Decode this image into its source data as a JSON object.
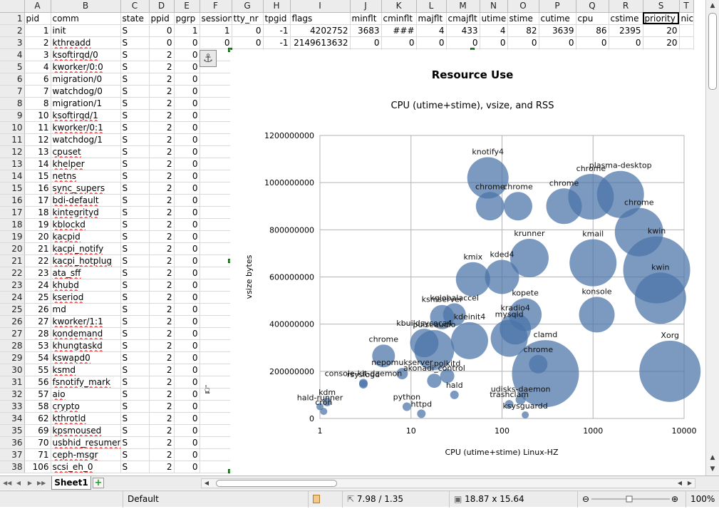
{
  "spreadsheet": {
    "columns": [
      {
        "letter": "A",
        "header": "pid"
      },
      {
        "letter": "B",
        "header": "comm"
      },
      {
        "letter": "C",
        "header": "state"
      },
      {
        "letter": "D",
        "header": "ppid"
      },
      {
        "letter": "E",
        "header": "pgrp"
      },
      {
        "letter": "F",
        "header": "session"
      },
      {
        "letter": "G",
        "header": "tty_nr"
      },
      {
        "letter": "H",
        "header": "tpgid"
      },
      {
        "letter": "I",
        "header": "flags"
      },
      {
        "letter": "J",
        "header": "minflt"
      },
      {
        "letter": "K",
        "header": "cminflt"
      },
      {
        "letter": "L",
        "header": "majflt"
      },
      {
        "letter": "M",
        "header": "cmajflt"
      },
      {
        "letter": "N",
        "header": "utime"
      },
      {
        "letter": "O",
        "header": "stime"
      },
      {
        "letter": "P",
        "header": "cutime"
      },
      {
        "letter": "Q",
        "header": "cpu"
      },
      {
        "letter": "R",
        "header": "cstime"
      },
      {
        "letter": "S",
        "header": "priority"
      },
      {
        "letter": "T",
        "header": "nice"
      }
    ],
    "selected_column": "S",
    "current_cell": "S1",
    "rows": [
      {
        "n": "2",
        "cells": [
          "1",
          "init",
          "S",
          "0",
          "1",
          "1",
          "0",
          "-1",
          "4202752",
          "3683",
          "###",
          "4",
          "433",
          "4",
          "82",
          "3639",
          "86",
          "2395",
          "20",
          ""
        ]
      },
      {
        "n": "3",
        "cells": [
          "2",
          "kthreadd",
          "S",
          "0",
          "0",
          "0",
          "0",
          "-1",
          "2149613632",
          "0",
          "0",
          "0",
          "0",
          "0",
          "0",
          "0",
          "0",
          "0",
          "20",
          ""
        ]
      },
      {
        "n": "4",
        "cells": [
          "3",
          "ksoftirqd/0",
          "S",
          "2",
          "0"
        ]
      },
      {
        "n": "5",
        "cells": [
          "4",
          "kworker/0:0",
          "S",
          "2",
          "0"
        ]
      },
      {
        "n": "6",
        "cells": [
          "6",
          "migration/0",
          "S",
          "2",
          "0"
        ]
      },
      {
        "n": "7",
        "cells": [
          "7",
          "watchdog/0",
          "S",
          "2",
          "0"
        ]
      },
      {
        "n": "8",
        "cells": [
          "8",
          "migration/1",
          "S",
          "2",
          "0"
        ]
      },
      {
        "n": "9",
        "cells": [
          "10",
          "ksoftirqd/1",
          "S",
          "2",
          "0"
        ]
      },
      {
        "n": "10",
        "cells": [
          "11",
          "kworker/0:1",
          "S",
          "2",
          "0"
        ]
      },
      {
        "n": "11",
        "cells": [
          "12",
          "watchdog/1",
          "S",
          "2",
          "0"
        ]
      },
      {
        "n": "12",
        "cells": [
          "13",
          "cpuset",
          "S",
          "2",
          "0"
        ]
      },
      {
        "n": "13",
        "cells": [
          "14",
          "khelper",
          "S",
          "2",
          "0"
        ]
      },
      {
        "n": "14",
        "cells": [
          "15",
          "netns",
          "S",
          "2",
          "0"
        ]
      },
      {
        "n": "15",
        "cells": [
          "16",
          "sync_supers",
          "S",
          "2",
          "0"
        ]
      },
      {
        "n": "16",
        "cells": [
          "17",
          "bdi-default",
          "S",
          "2",
          "0"
        ]
      },
      {
        "n": "17",
        "cells": [
          "18",
          "kintegrityd",
          "S",
          "2",
          "0"
        ]
      },
      {
        "n": "18",
        "cells": [
          "19",
          "kblockd",
          "S",
          "2",
          "0"
        ]
      },
      {
        "n": "19",
        "cells": [
          "20",
          "kacpid",
          "S",
          "2",
          "0"
        ]
      },
      {
        "n": "20",
        "cells": [
          "21",
          "kacpi_notify",
          "S",
          "2",
          "0"
        ]
      },
      {
        "n": "21",
        "cells": [
          "22",
          "kacpi_hotplug",
          "S",
          "2",
          "0"
        ]
      },
      {
        "n": "22",
        "cells": [
          "23",
          "ata_sff",
          "S",
          "2",
          "0"
        ]
      },
      {
        "n": "23",
        "cells": [
          "24",
          "khubd",
          "S",
          "2",
          "0"
        ]
      },
      {
        "n": "24",
        "cells": [
          "25",
          "kseriod",
          "S",
          "2",
          "0"
        ]
      },
      {
        "n": "25",
        "cells": [
          "26",
          "md",
          "S",
          "2",
          "0"
        ]
      },
      {
        "n": "26",
        "cells": [
          "27",
          "kworker/1:1",
          "S",
          "2",
          "0"
        ]
      },
      {
        "n": "27",
        "cells": [
          "28",
          "kondemand",
          "S",
          "2",
          "0"
        ]
      },
      {
        "n": "28",
        "cells": [
          "53",
          "khungtaskd",
          "S",
          "2",
          "0"
        ]
      },
      {
        "n": "29",
        "cells": [
          "54",
          "kswapd0",
          "S",
          "2",
          "0"
        ]
      },
      {
        "n": "30",
        "cells": [
          "55",
          "ksmd",
          "S",
          "2",
          "0"
        ]
      },
      {
        "n": "31",
        "cells": [
          "56",
          "fsnotify_mark",
          "S",
          "2",
          "0"
        ]
      },
      {
        "n": "32",
        "cells": [
          "57",
          "aio",
          "S",
          "2",
          "0"
        ]
      },
      {
        "n": "33",
        "cells": [
          "58",
          "crypto",
          "S",
          "2",
          "0"
        ]
      },
      {
        "n": "34",
        "cells": [
          "62",
          "kthrotld",
          "S",
          "2",
          "0"
        ]
      },
      {
        "n": "35",
        "cells": [
          "69",
          "kpsmoused",
          "S",
          "2",
          "0"
        ]
      },
      {
        "n": "36",
        "cells": [
          "70",
          "usbhid_resumer",
          "S",
          "2",
          "0"
        ]
      },
      {
        "n": "37",
        "cells": [
          "71",
          "ceph-msgr",
          "S",
          "2",
          "0"
        ]
      },
      {
        "n": "38",
        "cells": [
          "106",
          "scsi_eh_0",
          "S",
          "2",
          "0"
        ]
      }
    ]
  },
  "chart_data": {
    "type": "scatter",
    "title": "Resource Use",
    "subtitle": "CPU (utime+stime), vsize, and RSS",
    "xlabel": "CPU (utime+stime) Linux-HZ",
    "ylabel": "vsize bytes",
    "xscale": "log",
    "xlim": [
      1,
      10000
    ],
    "ylim": [
      0,
      1200000000
    ],
    "xticks": [
      "1",
      "10",
      "100",
      "1000",
      "10000"
    ],
    "yticks": [
      "0",
      "200000000",
      "400000000",
      "600000000",
      "800000000",
      "1000000000",
      "1200000000"
    ],
    "grid": true,
    "color": "#4a73a8",
    "points": [
      {
        "label": "knotify4",
        "x": 70,
        "y": 1020000000,
        "size": 29
      },
      {
        "label": "chrome",
        "x": 74,
        "y": 900000000,
        "size": 20
      },
      {
        "label": "chrome",
        "x": 150,
        "y": 900000000,
        "size": 20
      },
      {
        "label": "chrome",
        "x": 480,
        "y": 900000000,
        "size": 25
      },
      {
        "label": "chrome",
        "x": 950,
        "y": 940000000,
        "size": 32
      },
      {
        "label": "plasma-desktop",
        "x": 2000,
        "y": 950000000,
        "size": 33
      },
      {
        "label": "chrome",
        "x": 3200,
        "y": 790000000,
        "size": 34
      },
      {
        "label": "kmail",
        "x": 1000,
        "y": 660000000,
        "size": 33
      },
      {
        "label": "kwin",
        "x": 5000,
        "y": 630000000,
        "size": 47
      },
      {
        "label": "kwin",
        "x": 5500,
        "y": 510000000,
        "size": 36
      },
      {
        "label": "krunner",
        "x": 200,
        "y": 680000000,
        "size": 27
      },
      {
        "label": "kded4",
        "x": 100,
        "y": 600000000,
        "size": 24
      },
      {
        "label": "kmix",
        "x": 48,
        "y": 590000000,
        "size": 24
      },
      {
        "label": "kopete",
        "x": 180,
        "y": 440000000,
        "size": 23
      },
      {
        "label": "konsole",
        "x": 1100,
        "y": 440000000,
        "size": 25
      },
      {
        "label": "mysqld",
        "x": 120,
        "y": 340000000,
        "size": 26
      },
      {
        "label": "kradio4",
        "x": 140,
        "y": 380000000,
        "size": 22
      },
      {
        "label": "clamd",
        "x": 300,
        "y": 190000000,
        "size": 47
      },
      {
        "label": "chrome",
        "x": 250,
        "y": 230000000,
        "size": 13
      },
      {
        "label": "Xorg",
        "x": 7000,
        "y": 200000000,
        "size": 43
      },
      {
        "label": "ksmserver",
        "x": 22,
        "y": 430000000,
        "size": 17
      },
      {
        "label": "kglobalaccel",
        "x": 30,
        "y": 440000000,
        "size": 16
      },
      {
        "label": "kdeinit4",
        "x": 44,
        "y": 330000000,
        "size": 26
      },
      {
        "label": "pulseaudio",
        "x": 18,
        "y": 290000000,
        "size": 28
      },
      {
        "label": "chrome",
        "x": 5,
        "y": 265000000,
        "size": 16
      },
      {
        "label": "kbuildsycoca4",
        "x": 14,
        "y": 320000000,
        "size": 20
      },
      {
        "label": "polkitd",
        "x": 25,
        "y": 180000000,
        "size": 10
      },
      {
        "label": "nepomukserver",
        "x": 8,
        "y": 190000000,
        "size": 8
      },
      {
        "label": "akonadi_control",
        "x": 18,
        "y": 160000000,
        "size": 10
      },
      {
        "label": "console-kit-daemon",
        "x": 3,
        "y": 150000000,
        "size": 6
      },
      {
        "label": "rsyslogd",
        "x": 3,
        "y": 145000000,
        "size": 6
      },
      {
        "label": "udisks-daemon",
        "x": 160,
        "y": 80000000,
        "size": 7
      },
      {
        "label": "trashclam",
        "x": 120,
        "y": 60000000,
        "size": 6
      },
      {
        "label": "hald",
        "x": 30,
        "y": 100000000,
        "size": 6
      },
      {
        "label": "kdm",
        "x": 1.2,
        "y": 70000000,
        "size": 6
      },
      {
        "label": "cron",
        "x": 1.1,
        "y": 30000000,
        "size": 5
      },
      {
        "label": "hald-runner",
        "x": 1,
        "y": 50000000,
        "size": 5
      },
      {
        "label": "ksysguardd",
        "x": 180,
        "y": 15000000,
        "size": 5
      },
      {
        "label": "python",
        "x": 9,
        "y": 50000000,
        "size": 6
      },
      {
        "label": "httpd",
        "x": 13,
        "y": 20000000,
        "size": 6
      }
    ]
  },
  "tabs": {
    "sheet_name": "Sheet1",
    "add_symbol": "+"
  },
  "status": {
    "page_style": "Default",
    "position": "7.98 / 1.35",
    "size": "18.87 x 15.64",
    "zoom": "100%",
    "zoom_minus": "⊖",
    "zoom_plus": "⊕"
  },
  "icons": {
    "anchor": "⚓"
  }
}
